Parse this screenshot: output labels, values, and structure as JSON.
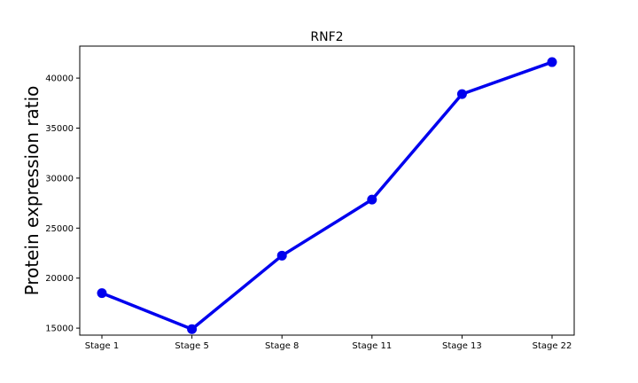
{
  "chart_data": {
    "type": "line",
    "title": "RNF2",
    "xlabel": "",
    "ylabel": "Protein expression ratio",
    "categories": [
      "Stage 1",
      "Stage 5",
      "Stage 8",
      "Stage 11",
      "Stage 13",
      "Stage 22"
    ],
    "series": [
      {
        "values": [
          18500,
          14900,
          22250,
          27850,
          38400,
          41600
        ],
        "color": "#0000ee"
      }
    ],
    "ylim": [
      14300,
      43200
    ],
    "yticks": [
      15000,
      20000,
      25000,
      30000,
      35000,
      40000
    ],
    "grid": false,
    "legend": "none"
  }
}
